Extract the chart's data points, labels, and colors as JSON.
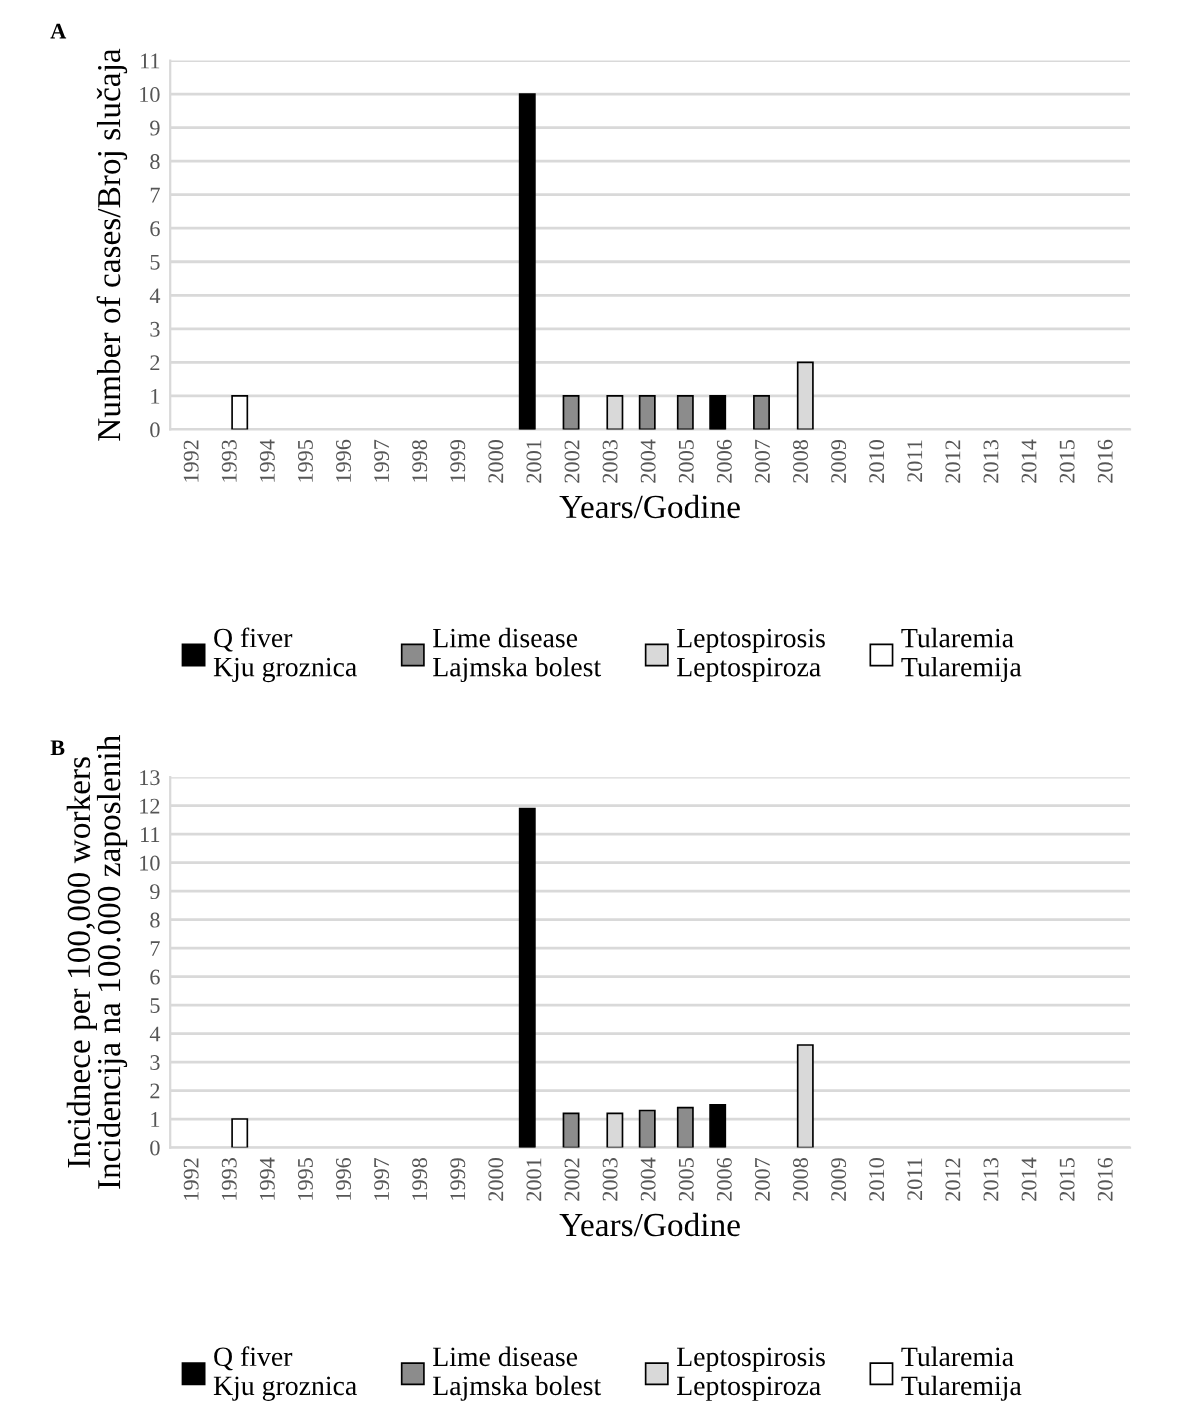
{
  "chart_data": [
    {
      "type": "bar",
      "title": "A",
      "xlabel": "Years/Godine",
      "ylabel": "Number of cases/Broj slučaja",
      "categories": [
        "1992",
        "1993",
        "1994",
        "1995",
        "1996",
        "1997",
        "1998",
        "1999",
        "2000",
        "2001",
        "2002",
        "2003",
        "2004",
        "2005",
        "2006",
        "2007",
        "2008",
        "2009",
        "2010",
        "2011",
        "2012",
        "2013",
        "2014",
        "2015",
        "2016"
      ],
      "series": [
        {
          "name": "Q fiver\nKju groznica",
          "color": "#000000",
          "values": [
            null,
            null,
            null,
            null,
            null,
            null,
            null,
            null,
            null,
            10,
            null,
            null,
            null,
            null,
            1,
            null,
            null,
            null,
            null,
            null,
            null,
            null,
            null,
            null,
            null
          ]
        },
        {
          "name": "Lime disease\nLajmska bolest",
          "color": "#8c8c8c",
          "values": [
            null,
            null,
            null,
            null,
            null,
            null,
            null,
            null,
            null,
            null,
            1,
            null,
            1,
            1,
            null,
            1,
            null,
            null,
            null,
            null,
            null,
            null,
            null,
            null,
            null
          ]
        },
        {
          "name": "Leptospirosis\nLeptospiroza",
          "color": "#d9d9d9",
          "values": [
            null,
            null,
            null,
            null,
            null,
            null,
            null,
            null,
            null,
            null,
            null,
            1,
            null,
            null,
            null,
            null,
            2,
            null,
            null,
            null,
            null,
            null,
            null,
            null,
            null
          ]
        },
        {
          "name": "Tularemia\nTularemija",
          "color": "#ffffff",
          "values": [
            null,
            1,
            null,
            null,
            null,
            null,
            null,
            null,
            null,
            null,
            null,
            null,
            null,
            null,
            null,
            null,
            null,
            null,
            null,
            null,
            null,
            null,
            null,
            null,
            null
          ]
        }
      ],
      "ylim": [
        0,
        11
      ],
      "yticks": [
        0,
        1,
        2,
        3,
        4,
        5,
        6,
        7,
        8,
        9,
        10,
        11
      ],
      "grid": "y",
      "legend": "bottom"
    },
    {
      "type": "bar",
      "title": "B",
      "xlabel": "Years/Godine",
      "ylabel": "Incidnece per 100,000 workers\nIncidencija na 100.000 zaposlenih",
      "categories": [
        "1992",
        "1993",
        "1994",
        "1995",
        "1996",
        "1997",
        "1998",
        "1999",
        "2000",
        "2001",
        "2002",
        "2003",
        "2004",
        "2005",
        "2006",
        "2007",
        "2008",
        "2009",
        "2010",
        "2011",
        "2012",
        "2013",
        "2014",
        "2015",
        "2016"
      ],
      "series": [
        {
          "name": "Q fiver\nKju groznica",
          "color": "#000000",
          "values": [
            null,
            null,
            null,
            null,
            null,
            null,
            null,
            null,
            null,
            11.9,
            null,
            null,
            null,
            null,
            1.5,
            null,
            null,
            null,
            null,
            null,
            null,
            null,
            null,
            null,
            null
          ]
        },
        {
          "name": "Lime disease\nLajmska bolest",
          "color": "#8c8c8c",
          "values": [
            null,
            null,
            null,
            null,
            null,
            null,
            null,
            null,
            null,
            null,
            1.2,
            null,
            1.3,
            1.4,
            null,
            null,
            null,
            null,
            null,
            null,
            null,
            null,
            null,
            null,
            null
          ]
        },
        {
          "name": "Leptospirosis\nLeptospiroza",
          "color": "#d9d9d9",
          "values": [
            null,
            null,
            null,
            null,
            null,
            null,
            null,
            null,
            null,
            null,
            null,
            1.2,
            null,
            null,
            null,
            null,
            3.6,
            null,
            null,
            null,
            null,
            null,
            null,
            null,
            null
          ]
        },
        {
          "name": "Tularemia\nTularemija",
          "color": "#ffffff",
          "values": [
            null,
            1.0,
            null,
            null,
            null,
            null,
            null,
            null,
            null,
            null,
            null,
            null,
            null,
            null,
            null,
            null,
            null,
            null,
            null,
            null,
            null,
            null,
            null,
            null,
            null
          ]
        }
      ],
      "ylim": [
        0,
        13
      ],
      "yticks": [
        0,
        1,
        2,
        3,
        4,
        5,
        6,
        7,
        8,
        9,
        10,
        11,
        12,
        13
      ],
      "grid": "y",
      "legend": "bottom"
    }
  ]
}
